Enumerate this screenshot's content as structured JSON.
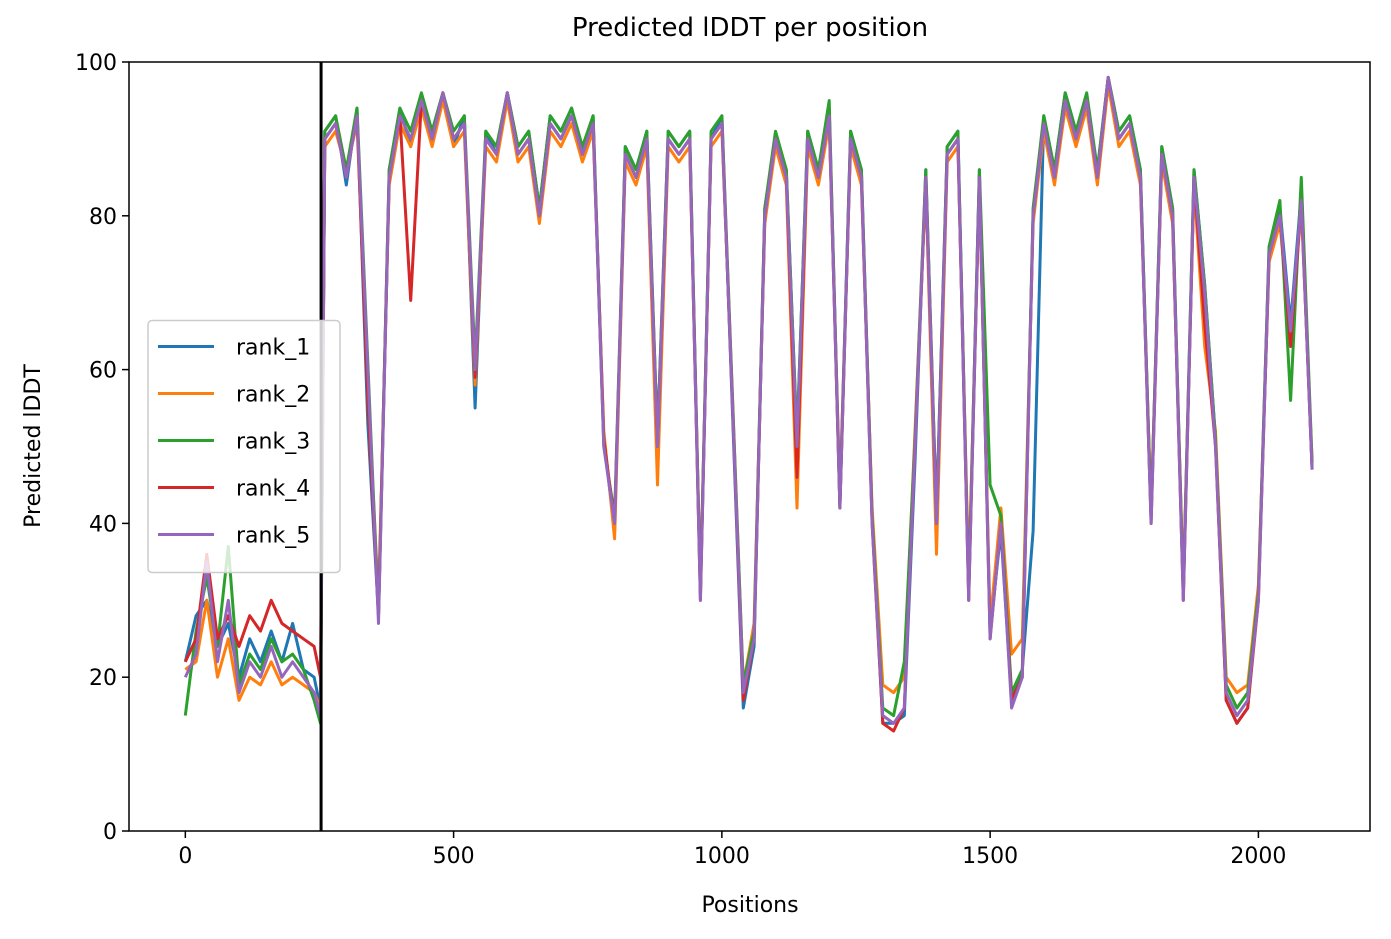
{
  "chart_data": {
    "type": "line",
    "title": "Predicted lDDT per position",
    "xlabel": "Positions",
    "ylabel": "Predicted lDDT",
    "x": [
      0,
      20,
      40,
      60,
      80,
      100,
      120,
      140,
      160,
      180,
      200,
      220,
      240,
      252,
      260,
      280,
      300,
      320,
      340,
      360,
      380,
      400,
      420,
      440,
      460,
      480,
      500,
      520,
      540,
      560,
      580,
      600,
      620,
      640,
      660,
      680,
      700,
      720,
      740,
      760,
      780,
      800,
      820,
      840,
      860,
      880,
      900,
      920,
      940,
      960,
      980,
      1000,
      1020,
      1040,
      1060,
      1080,
      1100,
      1120,
      1140,
      1160,
      1180,
      1200,
      1220,
      1240,
      1260,
      1280,
      1300,
      1320,
      1340,
      1360,
      1380,
      1400,
      1420,
      1440,
      1460,
      1480,
      1500,
      1520,
      1540,
      1560,
      1580,
      1600,
      1620,
      1640,
      1660,
      1680,
      1700,
      1720,
      1740,
      1760,
      1780,
      1800,
      1820,
      1840,
      1860,
      1880,
      1900,
      1920,
      1940,
      1960,
      1980,
      2000,
      2020,
      2040,
      2060,
      2080,
      2100
    ],
    "series": [
      {
        "name": "rank_1",
        "color": "#1f77b4",
        "values": [
          22,
          28,
          30,
          24,
          27,
          20,
          25,
          22,
          26,
          22,
          27,
          21,
          20,
          16,
          91,
          93,
          84,
          94,
          53,
          28,
          86,
          94,
          89,
          95,
          91,
          96,
          89,
          93,
          55,
          91,
          88,
          96,
          89,
          91,
          81,
          93,
          91,
          94,
          88,
          93,
          51,
          39,
          89,
          86,
          91,
          51,
          91,
          89,
          91,
          31,
          90,
          93,
          54,
          16,
          24,
          81,
          90,
          86,
          51,
          91,
          86,
          94,
          43,
          91,
          86,
          41,
          14,
          14,
          15,
          48,
          86,
          41,
          89,
          91,
          31,
          86,
          26,
          39,
          17,
          21,
          39,
          93,
          86,
          96,
          91,
          95,
          86,
          98,
          91,
          93,
          86,
          41,
          89,
          81,
          31,
          86,
          71,
          51,
          17,
          14,
          16,
          31,
          76,
          81,
          66,
          83,
          47
        ]
      },
      {
        "name": "rank_2",
        "color": "#ff7f0e",
        "values": [
          21,
          22,
          30,
          20,
          25,
          17,
          20,
          19,
          22,
          19,
          20,
          19,
          18,
          16,
          89,
          91,
          86,
          92,
          58,
          30,
          84,
          92,
          89,
          94,
          89,
          95,
          89,
          91,
          58,
          89,
          87,
          95,
          87,
          89,
          79,
          91,
          89,
          92,
          87,
          91,
          52,
          38,
          87,
          84,
          89,
          45,
          89,
          87,
          89,
          32,
          89,
          91,
          56,
          19,
          27,
          79,
          89,
          84,
          42,
          89,
          84,
          92,
          44,
          89,
          84,
          42,
          19,
          18,
          20,
          52,
          84,
          36,
          87,
          89,
          33,
          84,
          27,
          42,
          23,
          25,
          79,
          91,
          84,
          94,
          89,
          94,
          84,
          97,
          89,
          91,
          84,
          42,
          87,
          79,
          32,
          84,
          63,
          52,
          20,
          18,
          19,
          32,
          74,
          79,
          64,
          81,
          48
        ]
      },
      {
        "name": "rank_3",
        "color": "#2ca02c",
        "values": [
          15,
          26,
          33,
          24,
          37,
          19,
          23,
          21,
          25,
          22,
          23,
          21,
          17,
          14,
          91,
          93,
          86,
          94,
          61,
          28,
          86,
          94,
          91,
          96,
          91,
          96,
          91,
          93,
          61,
          91,
          89,
          96,
          89,
          91,
          81,
          93,
          91,
          94,
          89,
          93,
          50,
          41,
          89,
          86,
          91,
          51,
          91,
          89,
          91,
          31,
          91,
          93,
          56,
          19,
          26,
          81,
          91,
          86,
          51,
          91,
          86,
          95,
          42,
          91,
          86,
          41,
          16,
          15,
          22,
          51,
          86,
          41,
          89,
          91,
          31,
          86,
          45,
          41,
          18,
          21,
          81,
          93,
          86,
          96,
          91,
          96,
          86,
          98,
          91,
          93,
          86,
          41,
          89,
          81,
          31,
          86,
          71,
          51,
          19,
          16,
          18,
          31,
          76,
          82,
          56,
          85,
          48
        ]
      },
      {
        "name": "rank_4",
        "color": "#d62728",
        "values": [
          22,
          25,
          36,
          25,
          28,
          24,
          28,
          26,
          30,
          27,
          26,
          25,
          24,
          20,
          90,
          92,
          85,
          93,
          56,
          28,
          85,
          93,
          69,
          95,
          90,
          96,
          90,
          92,
          59,
          90,
          88,
          96,
          88,
          90,
          80,
          92,
          90,
          93,
          88,
          92,
          51,
          40,
          88,
          85,
          90,
          50,
          90,
          88,
          90,
          30,
          90,
          92,
          55,
          17,
          25,
          80,
          90,
          85,
          46,
          90,
          85,
          93,
          42,
          90,
          85,
          40,
          14,
          13,
          16,
          50,
          85,
          40,
          88,
          90,
          30,
          85,
          25,
          40,
          17,
          20,
          80,
          92,
          85,
          95,
          90,
          95,
          85,
          98,
          90,
          92,
          85,
          40,
          88,
          80,
          30,
          85,
          66,
          50,
          17,
          14,
          16,
          30,
          75,
          80,
          63,
          82,
          47
        ]
      },
      {
        "name": "rank_5",
        "color": "#9467bd",
        "values": [
          20,
          23,
          35,
          22,
          30,
          18,
          22,
          20,
          24,
          20,
          22,
          20,
          18,
          15,
          90,
          92,
          85,
          93,
          60,
          27,
          85,
          93,
          90,
          95,
          90,
          96,
          90,
          92,
          60,
          90,
          88,
          96,
          88,
          90,
          80,
          92,
          90,
          93,
          88,
          92,
          50,
          40,
          88,
          85,
          90,
          50,
          90,
          88,
          90,
          30,
          90,
          92,
          55,
          18,
          25,
          80,
          90,
          85,
          50,
          90,
          85,
          93,
          42,
          90,
          85,
          40,
          15,
          14,
          16,
          50,
          85,
          40,
          88,
          90,
          30,
          85,
          25,
          40,
          16,
          20,
          80,
          92,
          85,
          95,
          90,
          95,
          85,
          98,
          90,
          92,
          85,
          40,
          88,
          80,
          30,
          85,
          70,
          50,
          18,
          15,
          17,
          30,
          75,
          80,
          65,
          82,
          47
        ]
      }
    ],
    "vlines": [
      253
    ],
    "xlim": [
      -105,
      2208
    ],
    "ylim": [
      0,
      100
    ],
    "xticks": [
      0,
      500,
      1000,
      1500,
      2000
    ],
    "yticks": [
      0,
      20,
      40,
      60,
      80,
      100
    ],
    "legend": "center left"
  }
}
